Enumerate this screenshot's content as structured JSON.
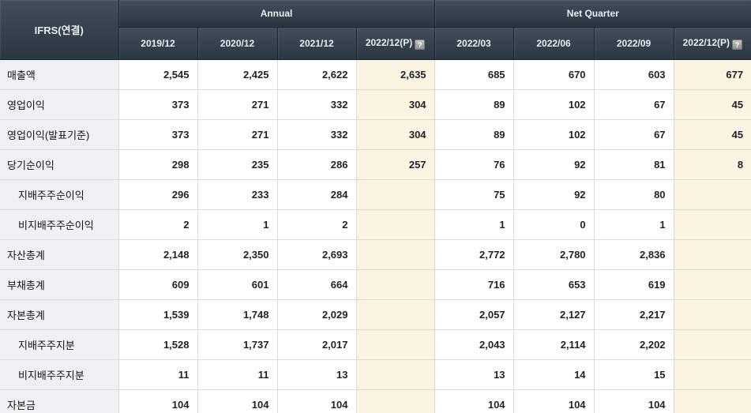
{
  "table": {
    "corner_label": "IFRS(연결)",
    "groups": [
      {
        "label": "Annual",
        "span": 4
      },
      {
        "label": "Net Quarter",
        "span": 4
      }
    ],
    "columns": [
      {
        "label": "2019/12",
        "help": false,
        "preliminary": false
      },
      {
        "label": "2020/12",
        "help": false,
        "preliminary": false
      },
      {
        "label": "2021/12",
        "help": false,
        "preliminary": false
      },
      {
        "label": "2022/12(P)",
        "help": true,
        "preliminary": true
      },
      {
        "label": "2022/03",
        "help": false,
        "preliminary": false
      },
      {
        "label": "2022/06",
        "help": false,
        "preliminary": false
      },
      {
        "label": "2022/09",
        "help": false,
        "preliminary": false
      },
      {
        "label": "2022/12(P)",
        "help": true,
        "preliminary": true
      }
    ],
    "help_icon": "?",
    "rows": [
      {
        "label": "매출액",
        "indent": false,
        "values": [
          "2,545",
          "2,425",
          "2,622",
          "2,635",
          "685",
          "670",
          "603",
          "677"
        ]
      },
      {
        "label": "영업이익",
        "indent": false,
        "values": [
          "373",
          "271",
          "332",
          "304",
          "89",
          "102",
          "67",
          "45"
        ]
      },
      {
        "label": "영업이익(발표기준)",
        "indent": false,
        "values": [
          "373",
          "271",
          "332",
          "304",
          "89",
          "102",
          "67",
          "45"
        ]
      },
      {
        "label": "당기순이익",
        "indent": false,
        "values": [
          "298",
          "235",
          "286",
          "257",
          "76",
          "92",
          "81",
          "8"
        ]
      },
      {
        "label": "지배주주순이익",
        "indent": true,
        "values": [
          "296",
          "233",
          "284",
          "",
          "75",
          "92",
          "80",
          ""
        ]
      },
      {
        "label": "비지배주주순이익",
        "indent": true,
        "values": [
          "2",
          "1",
          "2",
          "",
          "1",
          "0",
          "1",
          ""
        ]
      },
      {
        "label": "자산총계",
        "indent": false,
        "values": [
          "2,148",
          "2,350",
          "2,693",
          "",
          "2,772",
          "2,780",
          "2,836",
          ""
        ]
      },
      {
        "label": "부채총계",
        "indent": false,
        "values": [
          "609",
          "601",
          "664",
          "",
          "716",
          "653",
          "619",
          ""
        ]
      },
      {
        "label": "자본총계",
        "indent": false,
        "values": [
          "1,539",
          "1,748",
          "2,029",
          "",
          "2,057",
          "2,127",
          "2,217",
          ""
        ]
      },
      {
        "label": "지배주주지분",
        "indent": true,
        "values": [
          "1,528",
          "1,737",
          "2,017",
          "",
          "2,043",
          "2,114",
          "2,202",
          ""
        ]
      },
      {
        "label": "비지배주주지분",
        "indent": true,
        "values": [
          "11",
          "11",
          "13",
          "",
          "13",
          "14",
          "15",
          ""
        ]
      },
      {
        "label": "자본금",
        "indent": false,
        "values": [
          "104",
          "104",
          "104",
          "",
          "104",
          "104",
          "104",
          ""
        ]
      }
    ],
    "colors": {
      "header_bg_top": "#424f5b",
      "header_bg_bottom": "#2b3641",
      "header_text": "#e9eef3",
      "header_border": "#1b242d",
      "row_label_bg": "#eef0f4",
      "cell_bg": "#ffffff",
      "preliminary_col_bg": "#fbf4e2",
      "grid_border": "#dadada",
      "number_text": "#1f2128",
      "help_icon_bg": "#8d8d8d"
    }
  }
}
